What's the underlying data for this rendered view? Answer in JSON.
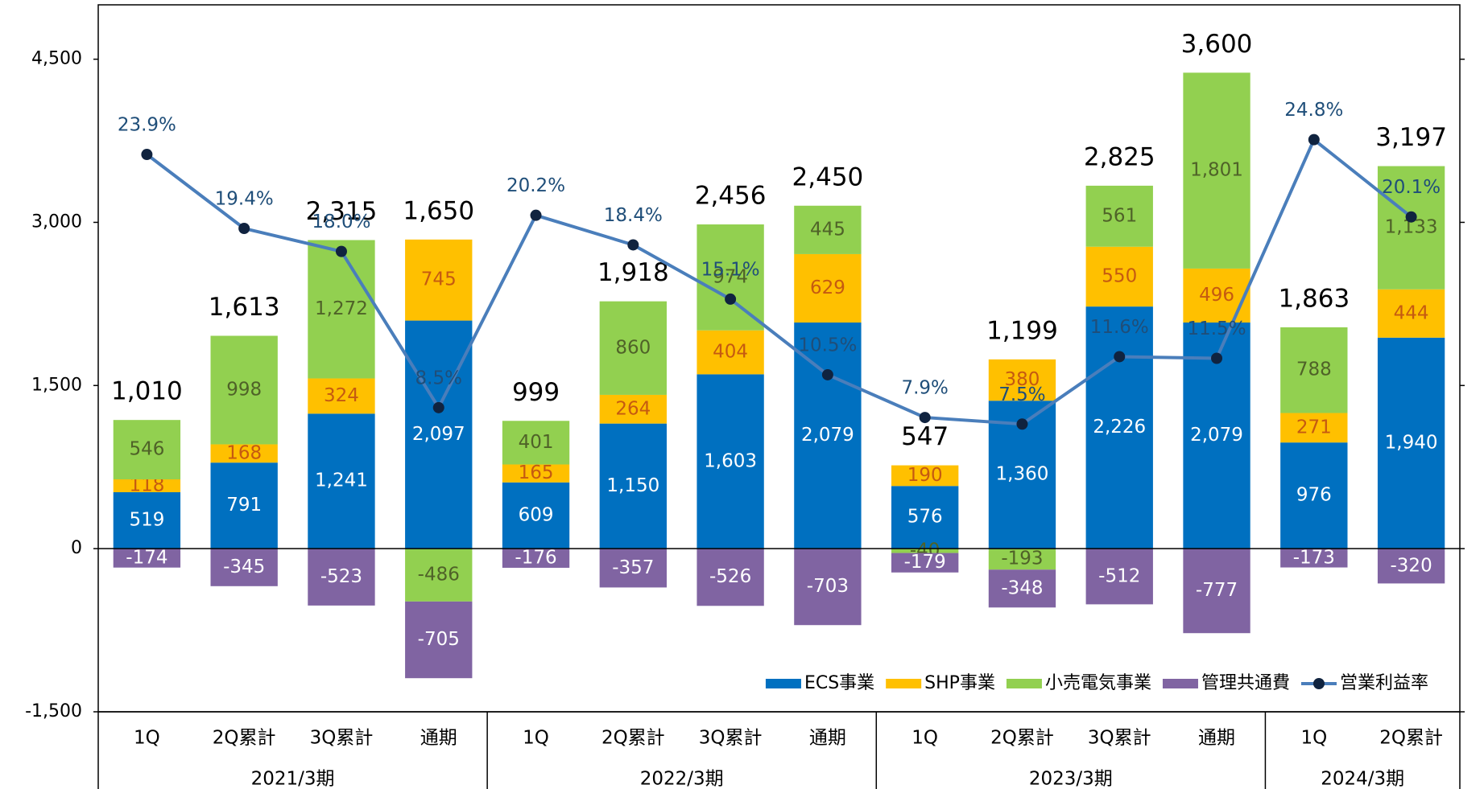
{
  "chart_data": {
    "type": "bar",
    "stacked": true,
    "groups": [
      {
        "name": "2021/3期",
        "categories": [
          "1Q",
          "2Q累計",
          "3Q累計",
          "通期"
        ]
      },
      {
        "name": "2022/3期",
        "categories": [
          "1Q",
          "2Q累計",
          "3Q累計",
          "通期"
        ]
      },
      {
        "name": "2023/3期",
        "categories": [
          "1Q",
          "2Q累計",
          "3Q累計",
          "通期"
        ]
      },
      {
        "name": "2024/3期",
        "categories": [
          "1Q",
          "2Q累計"
        ]
      }
    ],
    "series": [
      {
        "name": "ECS事業",
        "color": "#0070c0",
        "label_color": "#ffffff",
        "values": [
          519,
          791,
          1241,
          2097,
          609,
          1150,
          1603,
          2079,
          576,
          1360,
          2226,
          2079,
          976,
          1940
        ],
        "value_labels": [
          "519",
          "791",
          "1,241",
          "2,097",
          "609",
          "1,150",
          "1,603",
          "2,079",
          "576",
          "1,360",
          "2,226",
          "2,079",
          "976",
          "1,940"
        ]
      },
      {
        "name": "SHP事業",
        "color": "#ffc000",
        "label_color": "#c55a11",
        "values": [
          118,
          168,
          324,
          745,
          165,
          264,
          404,
          629,
          190,
          380,
          550,
          496,
          271,
          444
        ]
      },
      {
        "name": "小売電気事業",
        "color": "#92d050",
        "label_color": "#4f6228",
        "values": [
          546,
          998,
          1272,
          -486,
          401,
          860,
          974,
          445,
          -40,
          -193,
          561,
          1801,
          788,
          1133
        ],
        "value_labels": [
          "546",
          "998",
          "1,272",
          "-486",
          "401",
          "860",
          "974",
          "445",
          "-40",
          "-193",
          "561",
          "1,801",
          "788",
          "1,133"
        ]
      },
      {
        "name": "管理共通費",
        "color": "#8064a2",
        "label_color": "#ffffff",
        "values": [
          -174,
          -345,
          -523,
          -705,
          -176,
          -357,
          -526,
          -703,
          -179,
          -348,
          -512,
          -777,
          -173,
          -320
        ]
      },
      {
        "name": "営業利益率",
        "type": "line",
        "axis": "y2",
        "color": "#4a7ebb",
        "marker_color": "#10233f",
        "label_color": "#1f4e79",
        "values": [
          23.9,
          19.4,
          18.0,
          8.5,
          20.2,
          18.4,
          15.1,
          10.5,
          7.9,
          7.5,
          11.6,
          11.5,
          24.8,
          20.1
        ],
        "value_labels": [
          "23.9%",
          "19.4%",
          "18.0%",
          "8.5%",
          "20.2%",
          "18.4%",
          "15.1%",
          "10.5%",
          "7.9%",
          "7.5%",
          "11.6%",
          "11.5%",
          "24.8%",
          "20.1%"
        ]
      }
    ],
    "totals": {
      "values": [
        1010,
        1613,
        2315,
        1650,
        999,
        1918,
        2456,
        2450,
        547,
        1199,
        2825,
        3600,
        1863,
        3197
      ],
      "value_labels": [
        "1,010",
        "1,613",
        "2,315",
        "1,650",
        "999",
        "1,918",
        "2,456",
        "2,450",
        "547",
        "1,199",
        "2,825",
        "3,600",
        "1,863",
        "3,197"
      ]
    },
    "ylim": [
      -1500,
      5000
    ],
    "yticks": [
      {
        "value": -1500,
        "label": "-1,500"
      },
      0,
      {
        "value": 1500,
        "label": "1,500"
      },
      {
        "value": 3000,
        "label": "3,000"
      },
      {
        "value": 4500,
        "label": "4,500"
      }
    ],
    "y2lim": [
      -10,
      33
    ],
    "grid": false,
    "legend": "lower right"
  }
}
